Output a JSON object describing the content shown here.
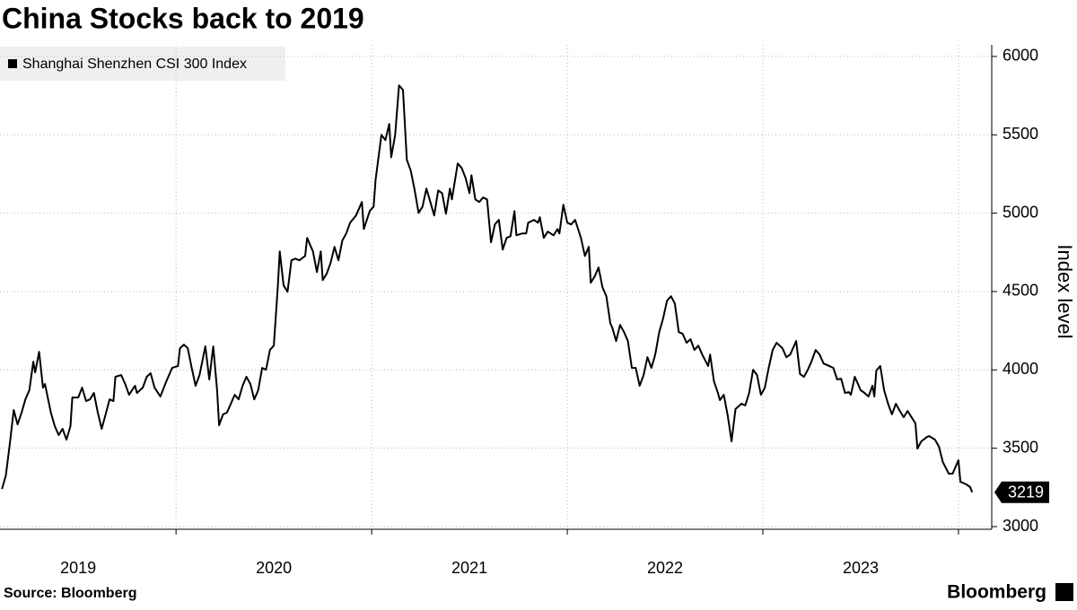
{
  "chart_data": {
    "type": "line",
    "title": "China Stocks back to 2019",
    "ylabel": "Index level",
    "source": "Source: Bloomberg",
    "brand": "Bloomberg",
    "legend": "top-left",
    "grid": true,
    "xlim": [
      2019.1,
      2024.17
    ],
    "ylim": [
      2983,
      6074
    ],
    "yticks": [
      3000,
      3500,
      4000,
      4500,
      5000,
      5500,
      6000
    ],
    "xticks": [
      {
        "value": 2019.5,
        "label": "2019"
      },
      {
        "value": 2020.5,
        "label": "2020"
      },
      {
        "value": 2021.5,
        "label": "2021"
      },
      {
        "value": 2022.5,
        "label": "2022"
      },
      {
        "value": 2023.5,
        "label": "2023"
      }
    ],
    "x": [
      2019.11,
      2019.13,
      2019.15,
      2019.17,
      2019.19,
      2019.21,
      2019.23,
      2019.25,
      2019.27,
      2019.28,
      2019.3,
      2019.32,
      2019.33,
      2019.36,
      2019.38,
      2019.4,
      2019.42,
      2019.44,
      2019.46,
      2019.47,
      2019.5,
      2019.52,
      2019.54,
      2019.56,
      2019.58,
      2019.6,
      2019.62,
      2019.64,
      2019.66,
      2019.68,
      2019.69,
      2019.72,
      2019.74,
      2019.76,
      2019.79,
      2019.8,
      2019.83,
      2019.85,
      2019.87,
      2019.89,
      2019.92,
      2019.95,
      2019.98,
      2020.01,
      2020.02,
      2020.04,
      2020.06,
      2020.08,
      2020.1,
      2020.12,
      2020.15,
      2020.17,
      2020.19,
      2020.21,
      2020.22,
      2020.24,
      2020.26,
      2020.28,
      2020.3,
      2020.32,
      2020.34,
      2020.36,
      2020.38,
      2020.4,
      2020.42,
      2020.44,
      2020.46,
      2020.48,
      2020.5,
      2020.52,
      2020.53,
      2020.55,
      2020.57,
      2020.59,
      2020.61,
      2020.63,
      2020.66,
      2020.67,
      2020.7,
      2020.72,
      2020.74,
      2020.75,
      2020.77,
      2020.79,
      2020.81,
      2020.83,
      2020.85,
      2020.87,
      2020.89,
      2020.92,
      2020.95,
      2020.96,
      2020.99,
      2021.01,
      2021.02,
      2021.05,
      2021.07,
      2021.09,
      2021.1,
      2021.12,
      2021.14,
      2021.16,
      2021.18,
      2021.2,
      2021.22,
      2021.24,
      2021.26,
      2021.28,
      2021.3,
      2021.32,
      2021.34,
      2021.36,
      2021.38,
      2021.4,
      2021.41,
      2021.44,
      2021.46,
      2021.48,
      2021.5,
      2021.51,
      2021.53,
      2021.55,
      2021.57,
      2021.59,
      2021.61,
      2021.63,
      2021.65,
      2021.67,
      2021.69,
      2021.71,
      2021.73,
      2021.74,
      2021.77,
      2021.79,
      2021.8,
      2021.83,
      2021.85,
      2021.86,
      2021.88,
      2021.9,
      2021.93,
      2021.95,
      2021.96,
      2021.98,
      2022.0,
      2022.02,
      2022.04,
      2022.07,
      2022.09,
      2022.11,
      2022.12,
      2022.14,
      2022.16,
      2022.18,
      2022.2,
      2022.22,
      2022.23,
      2022.25,
      2022.27,
      2022.29,
      2022.31,
      2022.33,
      2022.35,
      2022.37,
      2022.39,
      2022.41,
      2022.43,
      2022.45,
      2022.47,
      2022.49,
      2022.51,
      2022.53,
      2022.55,
      2022.57,
      2022.59,
      2022.61,
      2022.63,
      2022.65,
      2022.67,
      2022.69,
      2022.72,
      2022.73,
      2022.75,
      2022.77,
      2022.78,
      2022.8,
      2022.82,
      2022.84,
      2022.86,
      2022.89,
      2022.91,
      2022.93,
      2022.95,
      2022.97,
      2022.99,
      2023.01,
      2023.03,
      2023.05,
      2023.07,
      2023.1,
      2023.12,
      2023.14,
      2023.17,
      2023.19,
      2023.21,
      2023.23,
      2023.25,
      2023.27,
      2023.29,
      2023.31,
      2023.34,
      2023.36,
      2023.38,
      2023.4,
      2023.42,
      2023.44,
      2023.45,
      2023.47,
      2023.5,
      2023.52,
      2023.54,
      2023.56,
      2023.57,
      2023.58,
      2023.6,
      2023.62,
      2023.64,
      2023.66,
      2023.68,
      2023.7,
      2023.72,
      2023.74,
      2023.76,
      2023.78,
      2023.79,
      2023.81,
      2023.84,
      2023.85,
      2023.88,
      2023.9,
      2023.92,
      2023.95,
      2023.97,
      2024.0,
      2024.01,
      2024.04,
      2024.06,
      2024.07
    ],
    "series": [
      {
        "name": "Shanghai Shenzhen CSI 300 Index",
        "color": "#000000",
        "values": [
          3240,
          3326,
          3526,
          3744,
          3652,
          3726,
          3812,
          3870,
          4052,
          3984,
          4115,
          3887,
          3910,
          3727,
          3641,
          3584,
          3624,
          3555,
          3641,
          3824,
          3824,
          3887,
          3801,
          3812,
          3853,
          3727,
          3624,
          3716,
          3812,
          3801,
          3956,
          3967,
          3910,
          3841,
          3899,
          3853,
          3887,
          3956,
          3979,
          3887,
          3830,
          3927,
          4013,
          4024,
          4138,
          4161,
          4138,
          4013,
          3899,
          3967,
          4150,
          3939,
          4150,
          3870,
          3647,
          3716,
          3727,
          3784,
          3841,
          3812,
          3899,
          3956,
          3910,
          3812,
          3870,
          4013,
          4001,
          4127,
          4155,
          4527,
          4756,
          4539,
          4498,
          4699,
          4710,
          4699,
          4727,
          4842,
          4756,
          4624,
          4756,
          4573,
          4613,
          4682,
          4785,
          4699,
          4825,
          4871,
          4939,
          4985,
          5071,
          4899,
          5013,
          5042,
          5214,
          5500,
          5466,
          5569,
          5357,
          5500,
          5815,
          5786,
          5340,
          5271,
          5145,
          5002,
          5042,
          5157,
          5071,
          4985,
          5145,
          5128,
          4996,
          5157,
          5088,
          5317,
          5288,
          5225,
          5128,
          5242,
          5088,
          5071,
          5100,
          5088,
          4814,
          4928,
          4957,
          4767,
          4842,
          4853,
          5013,
          4859,
          4871,
          4871,
          4939,
          4957,
          4939,
          4974,
          4842,
          4882,
          4859,
          4899,
          4871,
          5054,
          4939,
          4928,
          4957,
          4842,
          4727,
          4785,
          4556,
          4596,
          4653,
          4527,
          4470,
          4298,
          4270,
          4184,
          4287,
          4241,
          4184,
          4013,
          4013,
          3899,
          3967,
          4081,
          4013,
          4098,
          4241,
          4327,
          4441,
          4470,
          4424,
          4241,
          4230,
          4173,
          4196,
          4127,
          4155,
          4098,
          4024,
          4098,
          3927,
          3853,
          3807,
          3841,
          3710,
          3544,
          3750,
          3784,
          3773,
          3853,
          4001,
          3967,
          3841,
          3887,
          4013,
          4127,
          4173,
          4138,
          4081,
          4098,
          4184,
          3973,
          3956,
          4001,
          4058,
          4127,
          4098,
          4041,
          4024,
          4013,
          3939,
          3944,
          3853,
          3858,
          3841,
          3956,
          3870,
          3853,
          3830,
          3899,
          3830,
          3996,
          4024,
          3870,
          3784,
          3716,
          3784,
          3738,
          3698,
          3738,
          3698,
          3659,
          3498,
          3544,
          3573,
          3578,
          3555,
          3510,
          3412,
          3338,
          3338,
          3424,
          3286,
          3269,
          3252,
          3219
        ]
      }
    ]
  }
}
